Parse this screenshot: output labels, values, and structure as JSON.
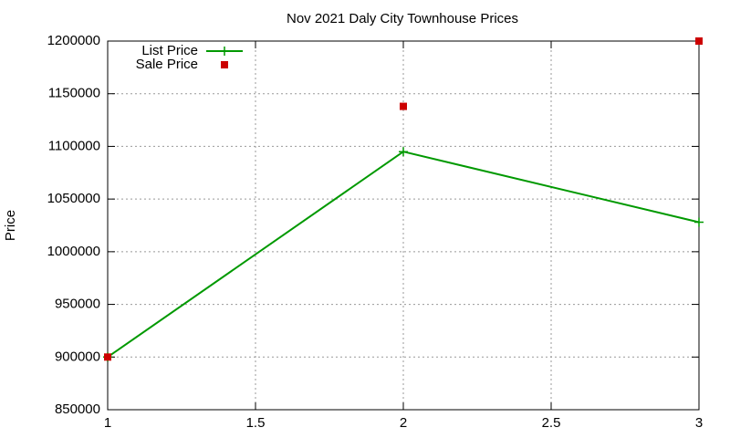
{
  "chart_data": {
    "type": "line",
    "title": "Nov 2021 Daly City Townhouse Prices",
    "y_label": "Price",
    "x": [
      1,
      2,
      3
    ],
    "series": [
      {
        "name": "List Price",
        "color": "#009900",
        "mode": "linespoints",
        "values": [
          900000,
          1095000,
          1028000
        ]
      },
      {
        "name": "Sale Price",
        "color": "#cc0000",
        "mode": "points",
        "values": [
          900000,
          1138000,
          1200000
        ]
      }
    ],
    "xlim": [
      1,
      3
    ],
    "xticks": [
      1,
      1.5,
      2,
      2.5,
      3
    ],
    "ylim": [
      850000,
      1200000
    ],
    "yticks": [
      850000,
      900000,
      950000,
      1000000,
      1050000,
      1100000,
      1150000,
      1200000
    ],
    "grid": true,
    "legend": "top-left"
  }
}
